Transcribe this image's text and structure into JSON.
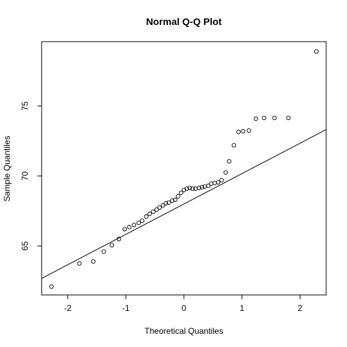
{
  "chart_data": {
    "type": "scatter",
    "title": "Normal Q-Q Plot",
    "xlabel": "Theoretical Quantiles",
    "ylabel": "Sample Quantiles",
    "xlim": [
      -2.45,
      2.45
    ],
    "ylim": [
      61.5,
      79.6
    ],
    "x_ticks": [
      -2,
      -1,
      0,
      1,
      2
    ],
    "y_ticks": [
      65,
      70,
      75
    ],
    "x_tick_labels": [
      "-2",
      "-1",
      "0",
      "1",
      "2"
    ],
    "y_tick_labels": [
      "65",
      "70",
      "75"
    ],
    "grid": false,
    "legend": "none",
    "points": {
      "x": [
        -2.28,
        -1.8,
        -1.56,
        -1.38,
        -1.24,
        -1.12,
        -1.02,
        -0.94,
        -0.86,
        -0.78,
        -0.72,
        -0.65,
        -0.59,
        -0.53,
        -0.47,
        -0.42,
        -0.36,
        -0.31,
        -0.26,
        -0.2,
        -0.15,
        -0.1,
        -0.05,
        0.0,
        0.05,
        0.1,
        0.15,
        0.2,
        0.26,
        0.31,
        0.36,
        0.42,
        0.47,
        0.53,
        0.59,
        0.65,
        0.72,
        0.78,
        0.86,
        0.94,
        1.02,
        1.12,
        1.24,
        1.38,
        1.56,
        1.8,
        2.28
      ],
      "y": [
        62.1,
        63.75,
        63.9,
        64.6,
        65.05,
        65.5,
        66.2,
        66.35,
        66.5,
        66.65,
        66.8,
        67.1,
        67.3,
        67.45,
        67.6,
        67.75,
        67.9,
        68.05,
        68.1,
        68.25,
        68.3,
        68.55,
        68.8,
        69.0,
        69.1,
        69.15,
        69.1,
        69.1,
        69.15,
        69.2,
        69.25,
        69.3,
        69.45,
        69.5,
        69.55,
        69.7,
        70.25,
        71.05,
        72.2,
        73.15,
        73.2,
        73.25,
        74.1,
        74.15,
        74.15,
        74.15,
        78.9
      ]
    },
    "reference_line": {
      "slope": 2.17,
      "intercept": 68.0
    }
  }
}
